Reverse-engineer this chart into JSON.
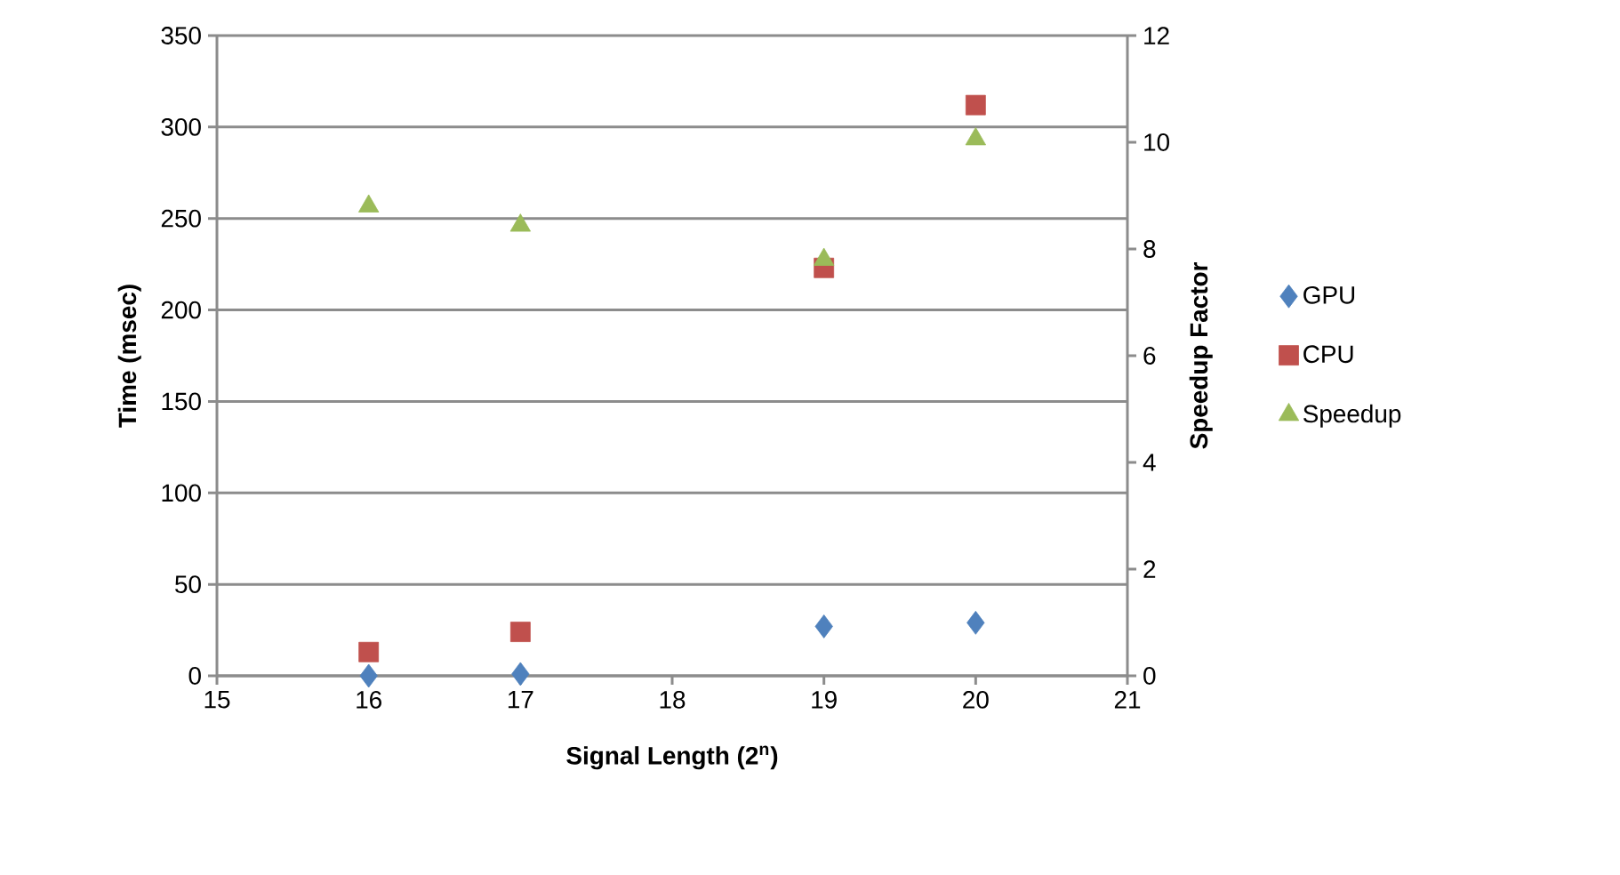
{
  "chart_data": {
    "type": "scatter",
    "xlabel": "Signal Length (2$^{n}$)",
    "ylabel": "Time (msec)",
    "y2label": "Speedup Factor",
    "xlim": [
      15,
      21
    ],
    "xticks": [
      15,
      16,
      17,
      18,
      19,
      20,
      21
    ],
    "ylim": [
      0,
      350
    ],
    "yticks": [
      0,
      50,
      100,
      150,
      200,
      250,
      300,
      350
    ],
    "y2lim": [
      0,
      12
    ],
    "y2ticks": [
      0,
      2,
      4,
      6,
      8,
      10,
      12
    ],
    "grid": "y",
    "legend": "right",
    "series": [
      {
        "name": "GPU",
        "color": "#4f81bd",
        "marker": "diamond",
        "x": [
          16,
          17,
          19,
          20
        ],
        "values": [
          0,
          1,
          27,
          29
        ]
      },
      {
        "name": "CPU",
        "color": "#c0504d",
        "marker": "square",
        "x": [
          16,
          17,
          19,
          20
        ],
        "values": [
          13,
          24,
          223,
          312
        ]
      },
      {
        "name": "Speedup",
        "color": "#9bbb59",
        "marker": "triangle",
        "axis": "y2",
        "x": [
          16,
          17,
          19,
          20
        ],
        "values": [
          8.8,
          8.44,
          7.8,
          10.06
        ]
      }
    ]
  }
}
